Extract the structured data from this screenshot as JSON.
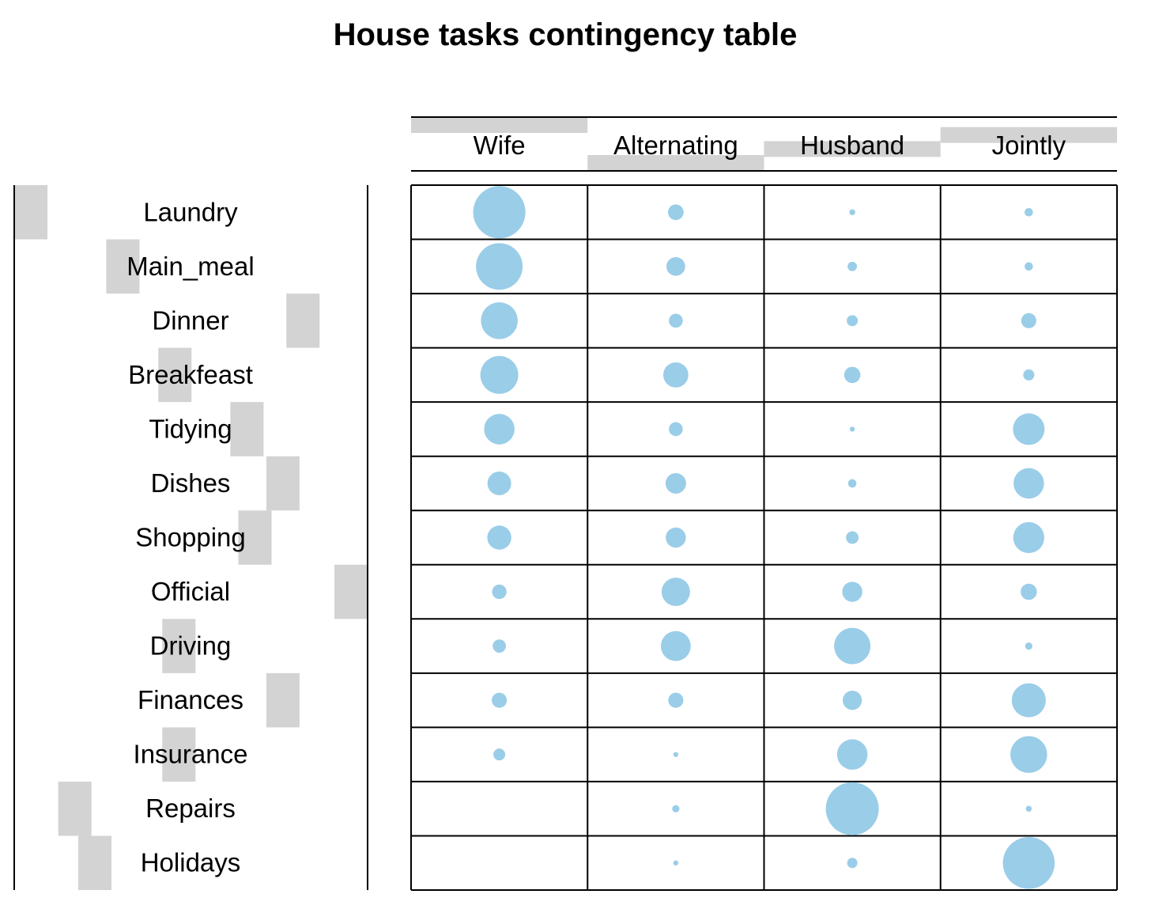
{
  "chart_data": {
    "type": "balloon",
    "title": "House tasks contingency table",
    "columns": [
      "Wife",
      "Alternating",
      "Husband",
      "Jointly"
    ],
    "rows": [
      "Laundry",
      "Main_meal",
      "Dinner",
      "Breakfeast",
      "Tidying",
      "Dishes",
      "Shopping",
      "Official",
      "Driving",
      "Finances",
      "Insurance",
      "Repairs",
      "Holidays"
    ],
    "values": [
      [
        156,
        14,
        2,
        4
      ],
      [
        124,
        20,
        5,
        4
      ],
      [
        77,
        11,
        7,
        13
      ],
      [
        82,
        36,
        15,
        7
      ],
      [
        53,
        11,
        1,
        57
      ],
      [
        32,
        24,
        4,
        53
      ],
      [
        33,
        23,
        9,
        55
      ],
      [
        12,
        46,
        23,
        15
      ],
      [
        10,
        51,
        75,
        3
      ],
      [
        13,
        13,
        21,
        66
      ],
      [
        8,
        1,
        53,
        77
      ],
      [
        0,
        3,
        160,
        2
      ],
      [
        0,
        1,
        6,
        153
      ]
    ],
    "column_marginal_bars": "top",
    "row_marginal_bars": "left",
    "colors": {
      "point": "#9ACDE8",
      "bar": "#D3D3D3",
      "grid": "#000000"
    }
  }
}
